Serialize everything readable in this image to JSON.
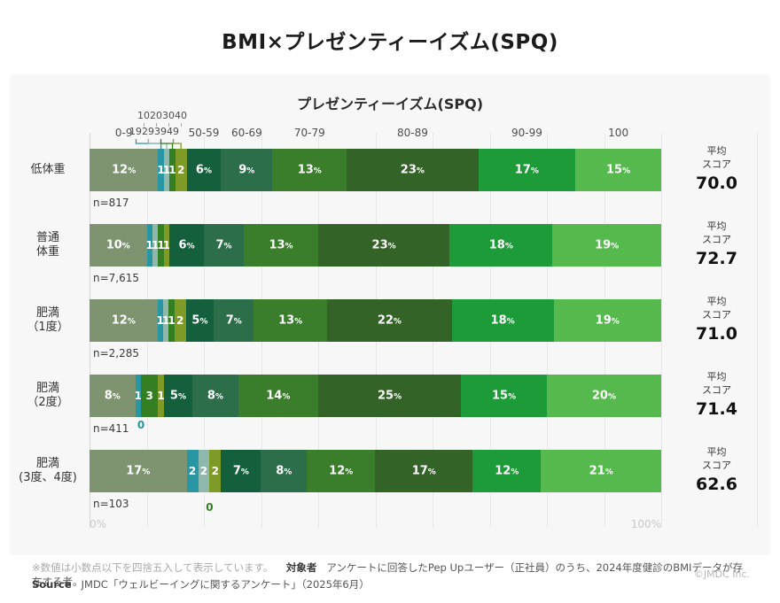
{
  "page_title": "BMI×プレゼンティーイズム(SPQ)",
  "chart_data": {
    "type": "bar",
    "variant": "horizontal-stacked-100percent",
    "title": "プレゼンティーイズム(SPQ)",
    "bands": [
      "0-9",
      "10-19",
      "20-29",
      "30-39",
      "40-49",
      "50-59",
      "60-69",
      "70-79",
      "80-89",
      "90-99",
      "100"
    ],
    "band_colors": [
      "#7e9471",
      "#2996a3",
      "#8fb8ad",
      "#337f22",
      "#7f9b27",
      "#14603c",
      "#2d6e4a",
      "#3a7d2b",
      "#346328",
      "#1d9b38",
      "#56b94e"
    ],
    "band_header_split": {
      "top": [
        "10",
        "20",
        "30",
        "40"
      ],
      "bottom": [
        "19",
        "29",
        "39",
        "49"
      ]
    },
    "rows": [
      {
        "label_lines": [
          "低体重"
        ],
        "n": "n=817",
        "values": [
          12,
          1,
          1,
          1,
          2,
          6,
          9,
          13,
          23,
          17,
          15
        ],
        "avg_score": "70.0"
      },
      {
        "label_lines": [
          "普通",
          "体重"
        ],
        "n": "n=7,615",
        "values": [
          10,
          1,
          1,
          1,
          1,
          6,
          7,
          13,
          23,
          18,
          19
        ],
        "avg_score": "72.7"
      },
      {
        "label_lines": [
          "肥満",
          "（1度）"
        ],
        "n": "n=2,285",
        "values": [
          12,
          1,
          1,
          1,
          2,
          5,
          7,
          13,
          22,
          18,
          19
        ],
        "avg_score": "71.0"
      },
      {
        "label_lines": [
          "肥満",
          "（2度）"
        ],
        "n": "n=411",
        "values": [
          8,
          1,
          0,
          3,
          1,
          5,
          8,
          14,
          25,
          15,
          20
        ],
        "avg_score": "71.4",
        "zero_label": {
          "band_index": 2,
          "text": "0",
          "color": "#2996a3"
        }
      },
      {
        "label_lines": [
          "肥満",
          "(3度、4度)"
        ],
        "n": "n=103",
        "values": [
          17,
          2,
          2,
          0,
          2,
          7,
          8,
          12,
          17,
          12,
          21
        ],
        "avg_score": "62.6",
        "zero_label": {
          "band_index": 3,
          "text": "0",
          "color": "#337f22"
        }
      }
    ],
    "avg_score_label_lines": [
      "平均",
      "スコア"
    ],
    "percent_suffix": "%",
    "x_axis": {
      "min_label": "0%",
      "max_label": "100%",
      "range": [
        0,
        100
      ]
    },
    "legend_position": "top-inline-headers",
    "grid": true
  },
  "footer": {
    "note": "※数値は小数点以下を四捨五入して表示しています。",
    "subject_label": "対象者",
    "subject_text": "アンケートに回答したPep Upユーザー（正社員）のうち、2024年度健診のBMIデータが存在する者。",
    "source_label": "Source",
    "source_text": "JMDC「ウェルビーイングに関するアンケート」（2025年6月）",
    "copyright": "©JMDC Inc."
  }
}
